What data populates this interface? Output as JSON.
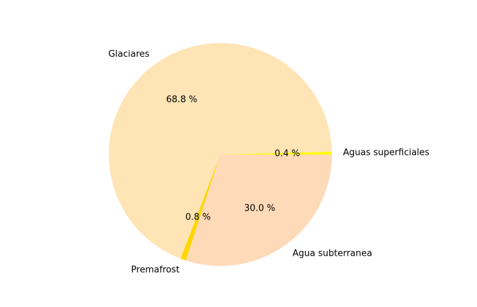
{
  "chart_data": {
    "type": "pie",
    "title": "",
    "start": "counterclockwise from 0°",
    "slices": [
      {
        "label": "Aguas superficiales",
        "value": 0.4,
        "pct_text": "0.4 %",
        "color": "#ffff00"
      },
      {
        "label": "Glaciares",
        "value": 68.8,
        "pct_text": "68.8 %",
        "color": "#ffe4b5"
      },
      {
        "label": "Premafrost",
        "value": 0.8,
        "pct_text": "0.8 %",
        "color": "#ffd700"
      },
      {
        "label": "Agua subterranea",
        "value": 30.0,
        "pct_text": "30.0 %",
        "color": "#ffdab9"
      }
    ]
  }
}
